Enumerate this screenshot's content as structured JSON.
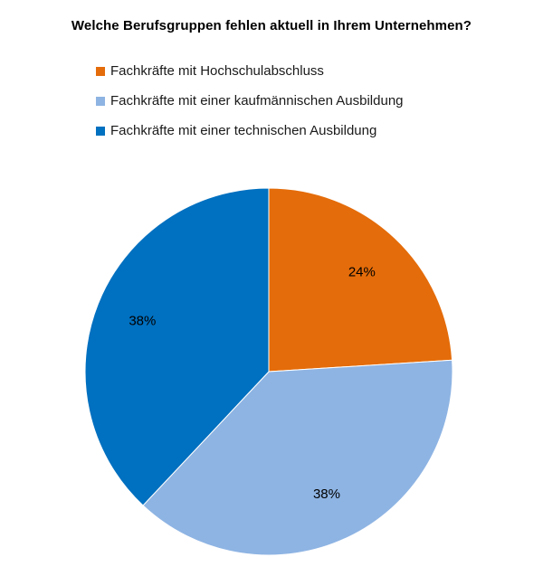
{
  "chart_data": {
    "type": "pie",
    "title": "Welche Berufsgruppen fehlen aktuell in Ihrem Unternehmen?",
    "legend_placement": "top",
    "series": [
      {
        "name": "Fachkräfte mit Hochschulabschluss",
        "value": 24,
        "label": "24%",
        "color": "#E46C0A"
      },
      {
        "name": "Fachkräfte mit einer kaufmännischen Ausbildung",
        "value": 38,
        "label": "38%",
        "color": "#8EB4E3"
      },
      {
        "name": "Fachkräfte mit einer technischen Ausbildung",
        "value": 38,
        "label": "38%",
        "color": "#0070C0"
      }
    ]
  }
}
